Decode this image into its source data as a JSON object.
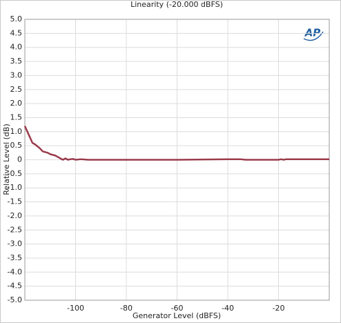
{
  "chart_data": {
    "type": "line",
    "title": "Linearity (-20.000 dBFS)",
    "logo": "AP",
    "x_label": "Generator Level (dBFS)",
    "y_label": "Relative Level (dB)",
    "xlim": [
      -120,
      0
    ],
    "ylim": [
      -5,
      5
    ],
    "xticks": [
      -100,
      -80,
      -60,
      -40,
      -20
    ],
    "yticks": [
      {
        "value": 5,
        "label": "5.0"
      },
      4.5,
      {
        "value": 4,
        "label": "4.0"
      },
      3.5,
      {
        "value": 3,
        "label": "3.0"
      },
      2.5,
      {
        "value": 2,
        "label": "2.0"
      },
      1.5,
      {
        "value": 1,
        "label": "1.0"
      },
      0.5,
      0,
      -0.5,
      {
        "value": -1,
        "label": "-1.0"
      },
      -1.5,
      {
        "value": -2,
        "label": "-2.0"
      },
      -2.5,
      {
        "value": -3,
        "label": "-3.0"
      },
      -3.5,
      {
        "value": -4,
        "label": "-4.0"
      },
      -4.5,
      {
        "value": -5,
        "label": "-5.0"
      }
    ],
    "grid": true,
    "x": [
      -120,
      -118,
      -117,
      -116,
      -114,
      -113,
      -111,
      -110,
      -108,
      -107,
      -106,
      -105,
      -104,
      -103,
      -102,
      -101,
      -100,
      -98,
      -95,
      -60,
      -40,
      -35,
      -33,
      -20,
      -19,
      -18,
      -17,
      0
    ],
    "series": [
      {
        "name": "Linearity",
        "color": "#9b3b4c",
        "values": [
          1.2,
          0.8,
          0.6,
          0.55,
          0.4,
          0.3,
          0.25,
          0.2,
          0.15,
          0.1,
          0.05,
          0.0,
          0.05,
          0.0,
          0.02,
          0.03,
          0.0,
          0.02,
          0.0,
          0.0,
          0.02,
          0.02,
          0.0,
          0.0,
          0.02,
          0.0,
          0.02,
          0.02
        ]
      }
    ]
  }
}
